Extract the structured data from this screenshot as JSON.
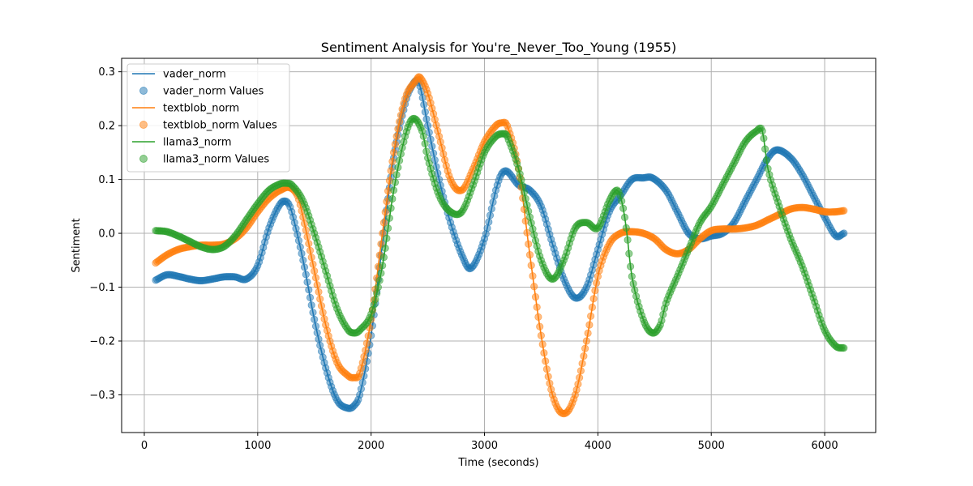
{
  "chart_data": {
    "type": "line",
    "title": "Sentiment Analysis for You're_Never_Too_Young (1955)",
    "xlabel": "Time (seconds)",
    "ylabel": "Sentiment",
    "xlim": [
      -200,
      6450
    ],
    "ylim": [
      -0.37,
      0.325
    ],
    "xticks": [
      0,
      1000,
      2000,
      3000,
      4000,
      5000,
      6000
    ],
    "yticks": [
      -0.3,
      -0.2,
      -0.1,
      0.0,
      0.1,
      0.2,
      0.3
    ],
    "ytick_labels": [
      "−0.3",
      "−0.2",
      "−0.1",
      "0.0",
      "0.1",
      "0.2",
      "0.3"
    ],
    "grid": true,
    "legend_position": "top-left",
    "legend": [
      "vader_norm",
      "vader_norm Values",
      "textblob_norm",
      "textblob_norm Values",
      "llama3_norm",
      "llama3_norm Values"
    ],
    "series": [
      {
        "name": "vader_norm",
        "color": "#1f77b4",
        "x": [
          100,
          200,
          300,
          400,
          500,
          600,
          700,
          800,
          900,
          1000,
          1100,
          1200,
          1260,
          1300,
          1400,
          1500,
          1600,
          1700,
          1800,
          1850,
          1900,
          2000,
          2100,
          2200,
          2300,
          2350,
          2420,
          2500,
          2600,
          2700,
          2800,
          2880,
          3000,
          3100,
          3150,
          3200,
          3300,
          3400,
          3500,
          3600,
          3700,
          3800,
          3900,
          4000,
          4100,
          4200,
          4300,
          4400,
          4480,
          4600,
          4700,
          4800,
          4900,
          5000,
          5100,
          5200,
          5300,
          5400,
          5500,
          5580,
          5700,
          5800,
          5900,
          6000,
          6100,
          6170
        ],
        "values": [
          -0.087,
          -0.077,
          -0.08,
          -0.085,
          -0.088,
          -0.085,
          -0.081,
          -0.081,
          -0.085,
          -0.06,
          0.01,
          0.055,
          0.058,
          0.04,
          -0.05,
          -0.16,
          -0.25,
          -0.31,
          -0.325,
          -0.32,
          -0.3,
          -0.19,
          -0.02,
          0.14,
          0.24,
          0.27,
          0.28,
          0.2,
          0.1,
          0.02,
          -0.04,
          -0.065,
          -0.01,
          0.08,
          0.11,
          0.115,
          0.09,
          0.08,
          0.05,
          -0.02,
          -0.085,
          -0.12,
          -0.1,
          -0.03,
          0.04,
          0.07,
          0.1,
          0.103,
          0.103,
          0.08,
          0.04,
          0.0,
          -0.01,
          -0.005,
          0.0,
          0.02,
          0.06,
          0.1,
          0.14,
          0.155,
          0.14,
          0.11,
          0.07,
          0.03,
          -0.005,
          0.0
        ]
      },
      {
        "name": "textblob_norm",
        "color": "#ff7f0e",
        "x": [
          100,
          200,
          300,
          400,
          500,
          600,
          700,
          800,
          900,
          1000,
          1100,
          1200,
          1280,
          1350,
          1400,
          1500,
          1600,
          1700,
          1800,
          1850,
          1900,
          2000,
          2100,
          2200,
          2300,
          2400,
          2430,
          2500,
          2600,
          2700,
          2800,
          2900,
          3000,
          3100,
          3150,
          3200,
          3300,
          3400,
          3500,
          3600,
          3700,
          3800,
          3900,
          4000,
          4100,
          4200,
          4300,
          4400,
          4500,
          4600,
          4700,
          4800,
          4900,
          5000,
          5100,
          5200,
          5300,
          5400,
          5500,
          5600,
          5700,
          5800,
          5900,
          6000,
          6100,
          6170
        ],
        "values": [
          -0.055,
          -0.04,
          -0.03,
          -0.025,
          -0.022,
          -0.022,
          -0.02,
          -0.01,
          0.01,
          0.04,
          0.065,
          0.08,
          0.085,
          0.07,
          0.03,
          -0.07,
          -0.17,
          -0.24,
          -0.265,
          -0.268,
          -0.26,
          -0.16,
          0.0,
          0.15,
          0.25,
          0.285,
          0.29,
          0.26,
          0.18,
          0.1,
          0.08,
          0.12,
          0.17,
          0.2,
          0.205,
          0.2,
          0.12,
          -0.04,
          -0.19,
          -0.3,
          -0.335,
          -0.3,
          -0.2,
          -0.08,
          -0.02,
          0.0,
          0.003,
          0.0,
          -0.01,
          -0.03,
          -0.038,
          -0.03,
          -0.01,
          0.005,
          0.008,
          0.008,
          0.01,
          0.015,
          0.025,
          0.035,
          0.045,
          0.048,
          0.045,
          0.04,
          0.04,
          0.042
        ]
      },
      {
        "name": "llama3_norm",
        "color": "#2ca02c",
        "x": [
          100,
          200,
          300,
          400,
          500,
          600,
          700,
          800,
          900,
          1000,
          1100,
          1200,
          1250,
          1300,
          1400,
          1500,
          1600,
          1700,
          1800,
          1860,
          1900,
          2000,
          2100,
          2200,
          2300,
          2370,
          2450,
          2500,
          2600,
          2700,
          2800,
          2900,
          3000,
          3100,
          3170,
          3200,
          3300,
          3400,
          3500,
          3600,
          3700,
          3800,
          3900,
          4000,
          4100,
          4170,
          4210,
          4250,
          4300,
          4400,
          4480,
          4550,
          4600,
          4700,
          4800,
          4900,
          5000,
          5100,
          5200,
          5300,
          5400,
          5450,
          5500,
          5600,
          5700,
          5800,
          5900,
          6000,
          6100,
          6170
        ],
        "values": [
          0.005,
          0.003,
          -0.005,
          -0.015,
          -0.025,
          -0.03,
          -0.025,
          -0.005,
          0.025,
          0.055,
          0.08,
          0.092,
          0.093,
          0.09,
          0.06,
          0.0,
          -0.07,
          -0.14,
          -0.18,
          -0.185,
          -0.18,
          -0.15,
          -0.06,
          0.08,
          0.18,
          0.213,
          0.19,
          0.14,
          0.07,
          0.04,
          0.04,
          0.09,
          0.15,
          0.18,
          0.185,
          0.18,
          0.12,
          0.03,
          -0.05,
          -0.085,
          -0.05,
          0.01,
          0.02,
          0.01,
          0.06,
          0.08,
          0.06,
          0.01,
          -0.08,
          -0.16,
          -0.185,
          -0.17,
          -0.13,
          -0.08,
          -0.03,
          0.02,
          0.05,
          0.09,
          0.13,
          0.17,
          0.19,
          0.19,
          0.12,
          0.05,
          -0.01,
          -0.06,
          -0.12,
          -0.18,
          -0.21,
          -0.213
        ]
      }
    ]
  }
}
